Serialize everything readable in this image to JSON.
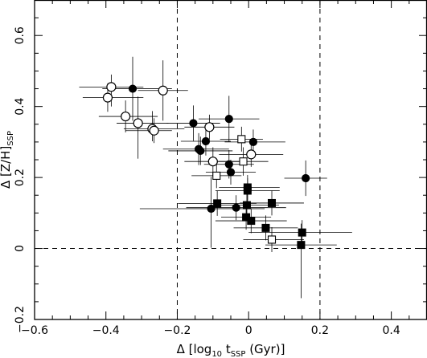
{
  "chart_data": {
    "type": "scatter",
    "xlabel": "Δ [log10 tSSP (Gyr)]",
    "ylabel": "Δ [Z/H]SSP",
    "xlabel_parts": {
      "pre": "Δ [log",
      "sub1": "10",
      "mid": " t",
      "sub2": "SSP",
      "post": " (Gyr)]"
    },
    "ylabel_parts": {
      "pre": "Δ [Z/H]",
      "sub": "SSP"
    },
    "xlim": [
      -0.6,
      0.5
    ],
    "ylim": [
      -0.2,
      0.7
    ],
    "xticks": [
      -0.6,
      -0.4,
      -0.2,
      0,
      0.2,
      0.4
    ],
    "xtick_labels": [
      "−0.6",
      "−0.4",
      "−0.2",
      "0",
      "0.2",
      "0.4"
    ],
    "yticks": [
      -0.2,
      0,
      0.2,
      0.4,
      0.6
    ],
    "ytick_labels": [
      "−0.2",
      "0",
      "0.2",
      "0.4",
      "0.6"
    ],
    "reference_lines": {
      "vertical": [
        -0.2,
        0.2
      ],
      "horizontal": [
        0
      ]
    },
    "grid": false,
    "legend": "none",
    "colors": {
      "ink": "#000000",
      "background": "#ffffff"
    },
    "series": [
      {
        "marker": "open-circle",
        "points": [
          {
            "x": -0.385,
            "y": 0.455,
            "xerr": [
              0.09,
              0.09
            ],
            "yerr": [
              0.055,
              0.035
            ]
          },
          {
            "x": -0.395,
            "y": 0.425,
            "xerr": [
              0.07,
              0.1
            ],
            "yerr": [
              0.04,
              0.04
            ]
          },
          {
            "x": -0.24,
            "y": 0.445,
            "xerr": [
              0.07,
              0.07
            ],
            "yerr": [
              0.085,
              0.085
            ]
          },
          {
            "x": -0.345,
            "y": 0.372,
            "xerr": [
              0.075,
              0.09
            ],
            "yerr": [
              0.045,
              0.045
            ]
          },
          {
            "x": -0.31,
            "y": 0.353,
            "xerr": [
              0.06,
              0.085
            ],
            "yerr": [
              0.1,
              0.075
            ]
          },
          {
            "x": -0.27,
            "y": 0.337,
            "xerr": [
              0.08,
              0.09
            ],
            "yerr": [
              0.035,
              0.05
            ]
          },
          {
            "x": -0.265,
            "y": 0.332,
            "xerr": [
              0.08,
              0.05
            ],
            "yerr": [
              0.035,
              0.035
            ]
          },
          {
            "x": -0.11,
            "y": 0.342,
            "xerr": [
              0.07,
              0.07
            ],
            "yerr": [
              0.035,
              0.035
            ]
          },
          {
            "x": -0.1,
            "y": 0.245,
            "xerr": [
              0.08,
              0.09
            ],
            "yerr": [
              0.04,
              0.04
            ]
          },
          {
            "x": 0.007,
            "y": 0.265,
            "xerr": [
              0.09,
              0.09
            ],
            "yerr": [
              0.035,
              0.035
            ]
          }
        ]
      },
      {
        "marker": "filled-circle",
        "points": [
          {
            "x": -0.325,
            "y": 0.45,
            "xerr": [
              0.085,
              0.11
            ],
            "yerr": [
              0.09,
              0.09
            ]
          },
          {
            "x": -0.155,
            "y": 0.353,
            "xerr": [
              0.075,
              0.075
            ],
            "yerr": [
              0.05,
              0.05
            ]
          },
          {
            "x": -0.055,
            "y": 0.365,
            "xerr": [
              0.085,
              0.085
            ],
            "yerr": [
              0.065,
              0.065
            ]
          },
          {
            "x": -0.14,
            "y": 0.28,
            "xerr": [
              0.1,
              0.085
            ],
            "yerr": [
              0.045,
              0.045
            ]
          },
          {
            "x": -0.135,
            "y": 0.275,
            "xerr": [
              0.09,
              0.09
            ],
            "yerr": [
              0.04,
              0.04
            ]
          },
          {
            "x": -0.12,
            "y": 0.302,
            "xerr": [
              0.07,
              0.07
            ],
            "yerr": [
              0.04,
              0.04
            ]
          },
          {
            "x": 0.013,
            "y": 0.3,
            "xerr": [
              0.08,
              0.09
            ],
            "yerr": [
              0.035,
              0.035
            ]
          },
          {
            "x": -0.055,
            "y": 0.237,
            "xerr": [
              0.07,
              0.07
            ],
            "yerr": [
              0.04,
              0.04
            ]
          },
          {
            "x": -0.05,
            "y": 0.215,
            "xerr": [
              0.07,
              0.07
            ],
            "yerr": [
              0.035,
              0.035
            ]
          },
          {
            "x": 0.16,
            "y": 0.198,
            "xerr": [
              0.06,
              0.06
            ],
            "yerr": [
              0.05,
              0.05
            ]
          },
          {
            "x": -0.105,
            "y": 0.112,
            "xerr": [
              0.2,
              0.15
            ],
            "yerr": [
              0.11,
              0.09
            ]
          },
          {
            "x": -0.035,
            "y": 0.115,
            "xerr": [
              0.14,
              0.14
            ],
            "yerr": [
              0.035,
              0.035
            ]
          }
        ]
      },
      {
        "marker": "open-square",
        "points": [
          {
            "x": -0.02,
            "y": 0.308,
            "xerr": [
              0.06,
              0.06
            ],
            "yerr": [
              0.035,
              0.035
            ]
          },
          {
            "x": -0.015,
            "y": 0.245,
            "xerr": [
              0.07,
              0.07
            ],
            "yerr": [
              0.04,
              0.04
            ]
          },
          {
            "x": -0.09,
            "y": 0.205,
            "xerr": [
              0.07,
              0.07
            ],
            "yerr": [
              0.035,
              0.035
            ]
          },
          {
            "x": 0.065,
            "y": 0.025,
            "xerr": [
              0.08,
              0.09
            ],
            "yerr": [
              0.035,
              0.035
            ]
          }
        ]
      },
      {
        "marker": "filled-square",
        "points": [
          {
            "x": -0.003,
            "y": 0.172,
            "xerr": [
              0.08,
              0.09
            ],
            "yerr": [
              0.035,
              0.035
            ]
          },
          {
            "x": -0.003,
            "y": 0.163,
            "xerr": [
              0.09,
              0.09
            ],
            "yerr": [
              0.035,
              0.035
            ]
          },
          {
            "x": -0.005,
            "y": 0.122,
            "xerr": [
              0.09,
              0.09
            ],
            "yerr": [
              0.035,
              0.035
            ]
          },
          {
            "x": -0.088,
            "y": 0.127,
            "xerr": [
              0.11,
              0.11
            ],
            "yerr": [
              0.035,
              0.035
            ]
          },
          {
            "x": 0.065,
            "y": 0.128,
            "xerr": [
              0.09,
              0.09
            ],
            "yerr": [
              0.035,
              0.035
            ]
          },
          {
            "x": -0.007,
            "y": 0.088,
            "xerr": [
              0.07,
              0.07
            ],
            "yerr": [
              0.035,
              0.035
            ]
          },
          {
            "x": 0.007,
            "y": 0.078,
            "xerr": [
              0.1,
              0.1
            ],
            "yerr": [
              0.035,
              0.035
            ]
          },
          {
            "x": 0.048,
            "y": 0.058,
            "xerr": [
              0.09,
              0.09
            ],
            "yerr": [
              0.035,
              0.035
            ]
          },
          {
            "x": 0.15,
            "y": 0.045,
            "xerr": [
              0.15,
              0.14
            ],
            "yerr": [
              0.035,
              0.035
            ]
          },
          {
            "x": 0.147,
            "y": 0.01,
            "xerr": [
              0.1,
              0.1
            ],
            "yerr": [
              0.15,
              0.06
            ]
          }
        ]
      }
    ]
  }
}
